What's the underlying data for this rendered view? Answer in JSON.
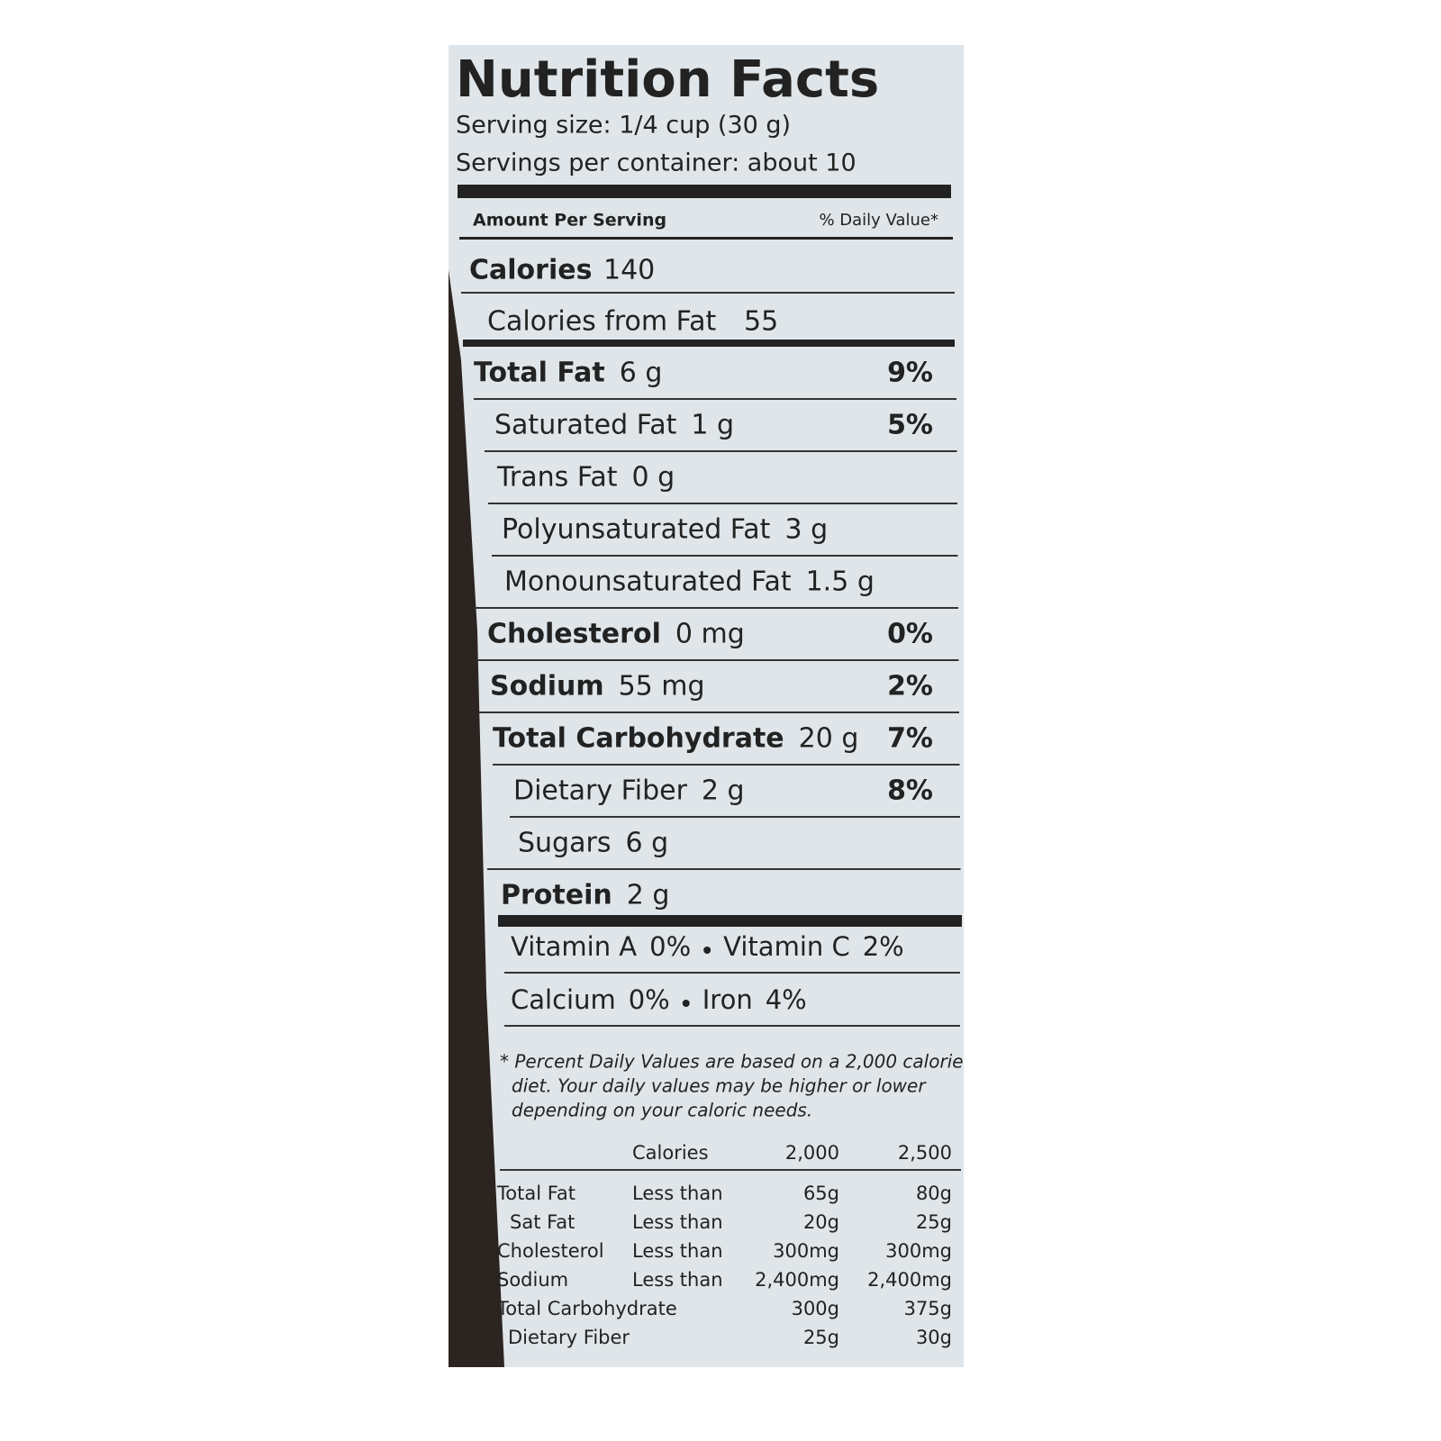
{
  "header": {
    "title": "Nutrition Facts",
    "serving_size": "Serving size: 1/4 cup (30 g)",
    "servings_per_container": "Servings per container: about 10"
  },
  "amount_per_serving": "Amount Per Serving",
  "daily_value_header": "% Daily Value*",
  "calories": {
    "label": "Calories",
    "value": "140"
  },
  "calories_from_fat": {
    "label": "Calories from Fat",
    "value": "55"
  },
  "nutrients": [
    {
      "name": "Total Fat",
      "amount": "6 g",
      "dv": "9%"
    },
    {
      "name": "Saturated Fat",
      "amount": "1 g",
      "dv": "5%"
    },
    {
      "name": "Trans Fat",
      "amount": "0 g"
    },
    {
      "name": "Polyunsaturated Fat",
      "amount": "3 g"
    },
    {
      "name": "Monounsaturated Fat",
      "amount": "1.5 g"
    },
    {
      "name": "Cholesterol",
      "amount": "0 mg",
      "dv": "0%"
    },
    {
      "name": "Sodium",
      "amount": "55 mg",
      "dv": "2%"
    },
    {
      "name": "Total Carbohydrate",
      "amount": "20 g",
      "dv": "7%"
    },
    {
      "name": "Dietary Fiber",
      "amount": "2 g",
      "dv": "8%"
    },
    {
      "name": "Sugars",
      "amount": "6 g"
    },
    {
      "name": "Protein",
      "amount": "2 g"
    }
  ],
  "vitamins": [
    [
      {
        "name": "Vitamin A",
        "dv": "0%"
      },
      {
        "name": "Vitamin C",
        "dv": "2%"
      }
    ],
    [
      {
        "name": "Calcium",
        "dv": "0%"
      },
      {
        "name": "Iron",
        "dv": "4%"
      }
    ]
  ],
  "footnote": [
    "* Percent Daily Values are based on a 2,000 calorie",
    "diet. Your daily values may be higher or lower",
    "depending on your caloric needs."
  ],
  "dv_table": {
    "header": [
      "Calories",
      "2,000",
      "2,500"
    ],
    "rows": [
      [
        "Total Fat",
        "Less than",
        "65g",
        "80g"
      ],
      [
        "Sat Fat",
        "Less than",
        "20g",
        "25g"
      ],
      [
        "Cholesterol",
        "Less than",
        "300mg",
        "300mg"
      ],
      [
        "Sodium",
        "Less than",
        "2,400mg",
        "2,400mg"
      ],
      [
        "Total Carbohydrate",
        "",
        "300g",
        "375g"
      ],
      [
        "Dietary Fiber",
        "",
        "25g",
        "30g"
      ]
    ]
  }
}
